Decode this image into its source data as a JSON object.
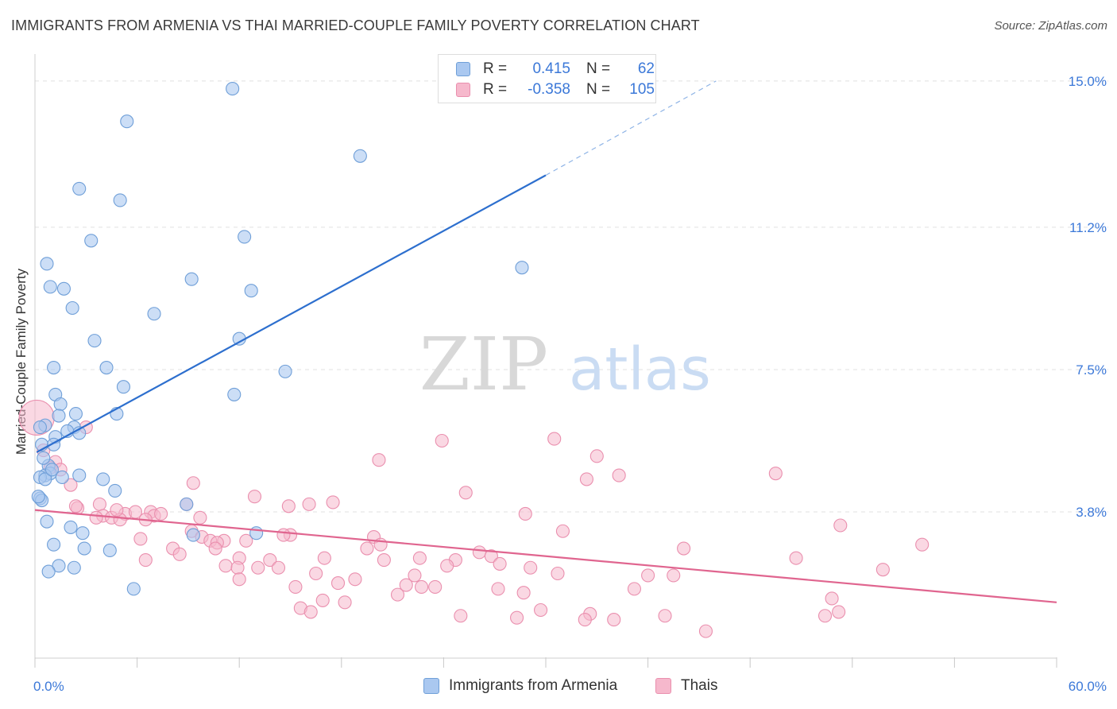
{
  "chart_data": {
    "type": "scatter",
    "title": "IMMIGRANTS FROM ARMENIA VS THAI MARRIED-COUPLE FAMILY POVERTY CORRELATION CHART",
    "source": "Source: ZipAtlas.com",
    "xlabel": "",
    "ylabel": "Married-Couple Family Poverty",
    "xlim": [
      0,
      60
    ],
    "ylim": [
      0,
      15.7
    ],
    "x_tick_labels": {
      "min": "0.0%",
      "max": "60.0%"
    },
    "y_ticks": [
      {
        "value": 3.8,
        "label": "3.8%"
      },
      {
        "value": 7.5,
        "label": "7.5%"
      },
      {
        "value": 11.2,
        "label": "11.2%"
      },
      {
        "value": 15.0,
        "label": "15.0%"
      }
    ],
    "watermark": {
      "part1": "ZIP",
      "part2": "atlas"
    },
    "legend": {
      "r_label": "R =",
      "n_label": "N =",
      "entries": [
        {
          "name": "Immigrants from Armenia",
          "r": "0.415",
          "n": "62"
        },
        {
          "name": "Thais",
          "r": "-0.358",
          "n": "105"
        }
      ]
    },
    "colors": {
      "armenia_fill": "#aac8f0",
      "armenia_stroke": "#6f9fd8",
      "armenia_line": "#2d6fce",
      "thai_fill": "#f6b8cc",
      "thai_stroke": "#ea8fae",
      "thai_line": "#e0658f",
      "value_text": "#3b78d8",
      "grid": "#e0e0e0"
    },
    "series": [
      {
        "name": "Immigrants from Armenia",
        "trend": {
          "x_start": 0.1,
          "y_start": 5.35,
          "x_end": 30.0,
          "y_end": 12.55,
          "dash_to_x": 40.0,
          "dash_to_y": 15.0
        },
        "points": [
          [
            11.6,
            14.8
          ],
          [
            5.4,
            13.95
          ],
          [
            19.1,
            13.05
          ],
          [
            2.6,
            12.2
          ],
          [
            5.0,
            11.9
          ],
          [
            3.3,
            10.85
          ],
          [
            12.3,
            10.95
          ],
          [
            0.7,
            10.25
          ],
          [
            28.6,
            10.15
          ],
          [
            9.2,
            9.85
          ],
          [
            0.9,
            9.65
          ],
          [
            1.7,
            9.6
          ],
          [
            12.7,
            9.55
          ],
          [
            2.2,
            9.1
          ],
          [
            7.0,
            8.95
          ],
          [
            3.5,
            8.25
          ],
          [
            12.0,
            8.3
          ],
          [
            1.1,
            7.55
          ],
          [
            4.2,
            7.55
          ],
          [
            14.7,
            7.45
          ],
          [
            5.2,
            7.05
          ],
          [
            1.2,
            6.85
          ],
          [
            11.7,
            6.85
          ],
          [
            1.5,
            6.6
          ],
          [
            4.8,
            6.35
          ],
          [
            2.4,
            6.35
          ],
          [
            1.4,
            6.3
          ],
          [
            0.6,
            6.05
          ],
          [
            0.3,
            6.0
          ],
          [
            2.3,
            6.0
          ],
          [
            1.9,
            5.9
          ],
          [
            2.6,
            5.85
          ],
          [
            1.2,
            5.75
          ],
          [
            0.4,
            5.55
          ],
          [
            1.1,
            5.55
          ],
          [
            0.8,
            5.0
          ],
          [
            0.9,
            4.8
          ],
          [
            0.6,
            4.75
          ],
          [
            2.6,
            4.75
          ],
          [
            0.3,
            4.7
          ],
          [
            1.6,
            4.7
          ],
          [
            0.6,
            4.65
          ],
          [
            4.0,
            4.65
          ],
          [
            4.7,
            4.35
          ],
          [
            0.3,
            4.15
          ],
          [
            0.4,
            4.1
          ],
          [
            8.9,
            4.0
          ],
          [
            0.7,
            3.55
          ],
          [
            2.1,
            3.4
          ],
          [
            13.0,
            3.25
          ],
          [
            2.8,
            3.25
          ],
          [
            9.3,
            3.2
          ],
          [
            1.1,
            2.95
          ],
          [
            2.9,
            2.85
          ],
          [
            4.4,
            2.8
          ],
          [
            1.4,
            2.4
          ],
          [
            2.3,
            2.35
          ],
          [
            0.8,
            2.25
          ],
          [
            5.8,
            1.8
          ],
          [
            0.5,
            5.2
          ],
          [
            1.0,
            4.9
          ],
          [
            0.2,
            4.2
          ]
        ]
      },
      {
        "name": "Thais",
        "trend": {
          "x_start": 0.0,
          "y_start": 3.85,
          "x_end": 60.0,
          "y_end": 1.45
        },
        "points": [
          [
            0.1,
            6.25
          ],
          [
            3.0,
            6.0
          ],
          [
            0.5,
            5.4
          ],
          [
            1.2,
            5.1
          ],
          [
            0.9,
            4.95
          ],
          [
            1.5,
            4.9
          ],
          [
            2.1,
            4.5
          ],
          [
            23.9,
            5.65
          ],
          [
            30.5,
            5.7
          ],
          [
            33.0,
            5.25
          ],
          [
            20.2,
            5.15
          ],
          [
            34.3,
            4.75
          ],
          [
            43.5,
            4.8
          ],
          [
            32.4,
            4.65
          ],
          [
            9.3,
            4.55
          ],
          [
            25.3,
            4.3
          ],
          [
            12.9,
            4.2
          ],
          [
            17.5,
            4.05
          ],
          [
            16.1,
            4.0
          ],
          [
            8.9,
            4.0
          ],
          [
            14.9,
            3.95
          ],
          [
            2.5,
            3.9
          ],
          [
            3.8,
            4.0
          ],
          [
            6.8,
            3.8
          ],
          [
            5.3,
            3.75
          ],
          [
            7.0,
            3.7
          ],
          [
            4.0,
            3.7
          ],
          [
            4.5,
            3.65
          ],
          [
            5.0,
            3.6
          ],
          [
            28.8,
            3.75
          ],
          [
            47.3,
            3.45
          ],
          [
            31.0,
            3.3
          ],
          [
            9.2,
            3.3
          ],
          [
            15.0,
            3.2
          ],
          [
            14.6,
            3.2
          ],
          [
            9.8,
            3.15
          ],
          [
            6.2,
            3.1
          ],
          [
            10.3,
            3.05
          ],
          [
            12.4,
            3.05
          ],
          [
            19.9,
            3.15
          ],
          [
            11.1,
            3.05
          ],
          [
            10.7,
            3.0
          ],
          [
            20.3,
            2.95
          ],
          [
            52.1,
            2.95
          ],
          [
            19.5,
            2.85
          ],
          [
            38.1,
            2.85
          ],
          [
            8.1,
            2.85
          ],
          [
            10.6,
            2.85
          ],
          [
            26.1,
            2.75
          ],
          [
            8.5,
            2.7
          ],
          [
            26.8,
            2.65
          ],
          [
            17.0,
            2.6
          ],
          [
            12.0,
            2.6
          ],
          [
            20.5,
            2.55
          ],
          [
            22.6,
            2.6
          ],
          [
            44.7,
            2.6
          ],
          [
            24.7,
            2.55
          ],
          [
            13.8,
            2.55
          ],
          [
            6.5,
            2.55
          ],
          [
            27.3,
            2.45
          ],
          [
            11.2,
            2.4
          ],
          [
            24.2,
            2.4
          ],
          [
            29.1,
            2.35
          ],
          [
            14.3,
            2.35
          ],
          [
            11.9,
            2.35
          ],
          [
            13.1,
            2.35
          ],
          [
            16.5,
            2.2
          ],
          [
            30.7,
            2.2
          ],
          [
            36.0,
            2.15
          ],
          [
            37.5,
            2.15
          ],
          [
            22.3,
            2.15
          ],
          [
            49.8,
            2.3
          ],
          [
            12.0,
            2.05
          ],
          [
            18.8,
            2.05
          ],
          [
            17.8,
            1.95
          ],
          [
            15.3,
            1.85
          ],
          [
            23.5,
            1.85
          ],
          [
            22.7,
            1.85
          ],
          [
            21.8,
            1.9
          ],
          [
            27.2,
            1.8
          ],
          [
            35.2,
            1.8
          ],
          [
            28.7,
            1.7
          ],
          [
            21.3,
            1.65
          ],
          [
            16.9,
            1.5
          ],
          [
            46.8,
            1.55
          ],
          [
            18.2,
            1.45
          ],
          [
            15.6,
            1.3
          ],
          [
            16.2,
            1.2
          ],
          [
            29.7,
            1.25
          ],
          [
            32.6,
            1.15
          ],
          [
            47.2,
            1.2
          ],
          [
            25.0,
            1.1
          ],
          [
            28.3,
            1.05
          ],
          [
            32.3,
            1.0
          ],
          [
            34.0,
            1.0
          ],
          [
            46.4,
            1.1
          ],
          [
            37.0,
            1.1
          ],
          [
            39.4,
            0.7
          ],
          [
            4.8,
            3.85
          ],
          [
            3.6,
            3.65
          ],
          [
            5.9,
            3.8
          ],
          [
            7.4,
            3.75
          ],
          [
            6.5,
            3.6
          ],
          [
            9.7,
            3.65
          ],
          [
            2.4,
            3.95
          ]
        ]
      }
    ]
  }
}
